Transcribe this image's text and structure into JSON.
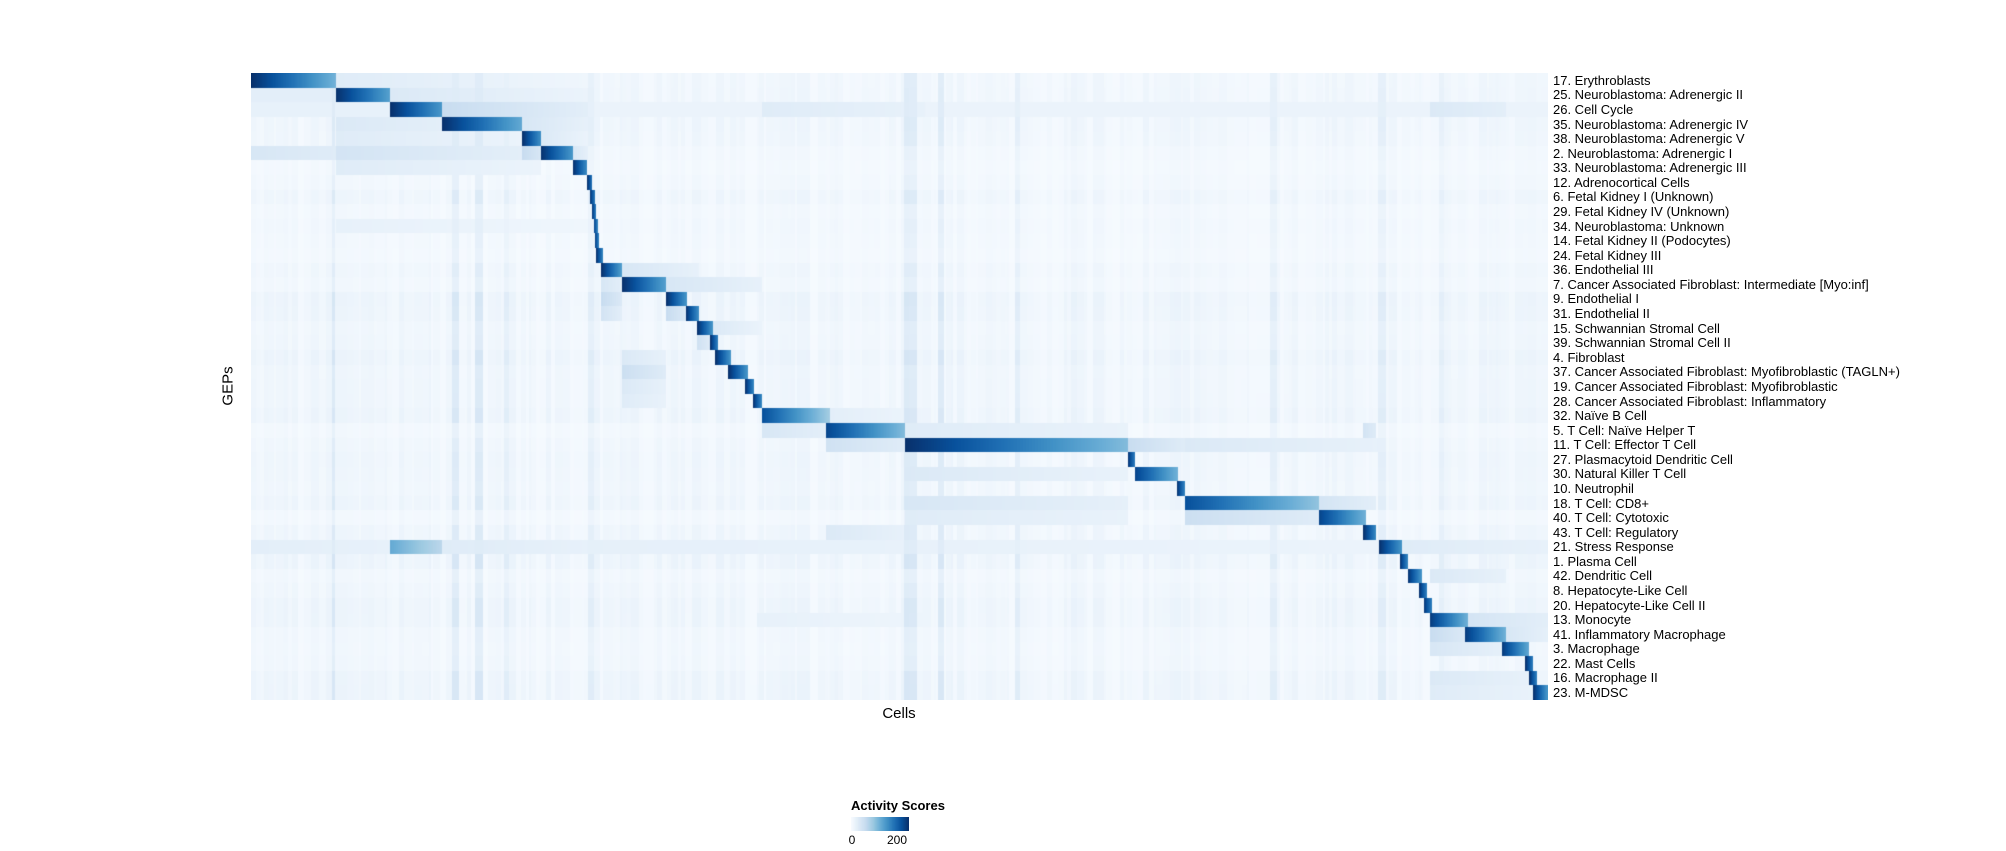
{
  "chart_data": {
    "type": "heatmap",
    "title": "",
    "xlabel": "Cells",
    "ylabel": "GEPs",
    "colorbar": {
      "title": "Activity Scores",
      "min_label": "0",
      "max_label": "200",
      "min_value": 0,
      "tick_max_value": 200,
      "scale_max_value": 250,
      "colormap": "Blues",
      "color_low": "#f7fbff",
      "color_high": "#08306b"
    },
    "noise": {
      "seed": 42,
      "base": 3,
      "range": 9,
      "spike_chance": 0.05,
      "spike_extra": 24,
      "run_min": 2,
      "run_max": 8
    },
    "rows": [
      {
        "label": "17. Erythroblasts",
        "blocks": [
          [
            0.0,
            0.065,
            250,
            120
          ],
          [
            0.065,
            0.26,
            30,
            10
          ]
        ]
      },
      {
        "label": "25. Neuroblastoma: Adrenergic II",
        "blocks": [
          [
            0.0,
            0.065,
            25,
            25
          ],
          [
            0.065,
            0.107,
            250,
            140
          ],
          [
            0.107,
            0.26,
            35,
            15
          ]
        ]
      },
      {
        "label": "26. Cell Cycle",
        "blocks": [
          [
            0.0,
            0.107,
            20,
            20
          ],
          [
            0.107,
            0.147,
            250,
            150
          ],
          [
            0.147,
            0.26,
            60,
            25
          ],
          [
            0.26,
            1.0,
            15,
            15
          ],
          [
            0.394,
            0.52,
            30,
            20
          ],
          [
            0.909,
            0.968,
            35,
            25
          ]
        ]
      },
      {
        "label": "35. Neuroblastoma: Adrenergic IV",
        "blocks": [
          [
            0.065,
            0.147,
            35,
            25
          ],
          [
            0.147,
            0.209,
            250,
            130
          ],
          [
            0.209,
            0.26,
            40,
            20
          ]
        ]
      },
      {
        "label": "38. Neuroblastoma: Adrenergic V",
        "blocks": [
          [
            0.065,
            0.209,
            30,
            15
          ],
          [
            0.209,
            0.223,
            250,
            160
          ],
          [
            0.223,
            0.26,
            35,
            15
          ]
        ]
      },
      {
        "label": "2. Neuroblastoma: Adrenergic I",
        "blocks": [
          [
            0.0,
            0.065,
            40,
            30
          ],
          [
            0.065,
            0.209,
            45,
            25
          ],
          [
            0.209,
            0.223,
            60,
            40
          ],
          [
            0.223,
            0.248,
            250,
            150
          ],
          [
            0.248,
            0.26,
            40,
            20
          ]
        ]
      },
      {
        "label": "33. Neuroblastoma: Adrenergic III",
        "blocks": [
          [
            0.065,
            0.223,
            30,
            15
          ],
          [
            0.248,
            0.259,
            250,
            160
          ]
        ]
      },
      {
        "label": "12. Adrenocortical Cells",
        "blocks": [
          [
            0.259,
            0.263,
            250,
            180
          ]
        ]
      },
      {
        "label": "6. Fetal Kidney I (Unknown)",
        "blocks": [
          [
            0.261,
            0.265,
            250,
            180
          ]
        ]
      },
      {
        "label": "29. Fetal Kidney IV (Unknown)",
        "blocks": [
          [
            0.263,
            0.266,
            240,
            170
          ]
        ]
      },
      {
        "label": "34. Neuroblastoma: Unknown",
        "blocks": [
          [
            0.065,
            0.26,
            20,
            10
          ],
          [
            0.264,
            0.267,
            240,
            170
          ]
        ]
      },
      {
        "label": "14. Fetal Kidney II (Podocytes)",
        "blocks": [
          [
            0.265,
            0.268,
            240,
            170
          ]
        ]
      },
      {
        "label": "24. Fetal Kidney III",
        "blocks": [
          [
            0.266,
            0.271,
            250,
            170
          ]
        ]
      },
      {
        "label": "36. Endothelial III",
        "blocks": [
          [
            0.27,
            0.286,
            250,
            140
          ],
          [
            0.286,
            0.345,
            40,
            20
          ]
        ]
      },
      {
        "label": "7. Cancer Associated Fibroblast: Intermediate [Myo:inf]",
        "blocks": [
          [
            0.27,
            0.286,
            40,
            25
          ],
          [
            0.286,
            0.32,
            250,
            140
          ],
          [
            0.32,
            0.394,
            40,
            20
          ]
        ]
      },
      {
        "label": "9. Endothelial I",
        "blocks": [
          [
            0.27,
            0.286,
            60,
            35
          ],
          [
            0.32,
            0.336,
            250,
            150
          ]
        ]
      },
      {
        "label": "31. Endothelial II",
        "blocks": [
          [
            0.27,
            0.286,
            45,
            25
          ],
          [
            0.32,
            0.335,
            60,
            35
          ],
          [
            0.335,
            0.345,
            250,
            160
          ]
        ]
      },
      {
        "label": "15. Schwannian Stromal Cell",
        "blocks": [
          [
            0.344,
            0.356,
            250,
            150
          ],
          [
            0.356,
            0.394,
            35,
            15
          ]
        ]
      },
      {
        "label": "39. Schwannian Stromal Cell II",
        "blocks": [
          [
            0.344,
            0.354,
            50,
            30
          ],
          [
            0.354,
            0.36,
            250,
            170
          ]
        ]
      },
      {
        "label": "4. Fibroblast",
        "blocks": [
          [
            0.286,
            0.32,
            35,
            20
          ],
          [
            0.358,
            0.37,
            250,
            150
          ]
        ]
      },
      {
        "label": "37. Cancer Associated Fibroblast: Myofibroblastic (TAGLN+)",
        "blocks": [
          [
            0.286,
            0.32,
            55,
            30
          ],
          [
            0.368,
            0.383,
            250,
            150
          ]
        ]
      },
      {
        "label": "19. Cancer Associated Fibroblast: Myofibroblastic",
        "blocks": [
          [
            0.286,
            0.32,
            35,
            20
          ],
          [
            0.381,
            0.388,
            250,
            160
          ]
        ]
      },
      {
        "label": "28. Cancer Associated Fibroblast: Inflammatory",
        "blocks": [
          [
            0.286,
            0.32,
            30,
            18
          ],
          [
            0.387,
            0.394,
            250,
            160
          ]
        ]
      },
      {
        "label": "32. Naïve B Cell",
        "blocks": [
          [
            0.394,
            0.446,
            220,
            90
          ],
          [
            0.446,
            0.52,
            25,
            12
          ]
        ]
      },
      {
        "label": "5. T Cell: Naïve Helper T",
        "blocks": [
          [
            0.394,
            0.443,
            40,
            25
          ],
          [
            0.443,
            0.504,
            230,
            110
          ],
          [
            0.504,
            0.676,
            30,
            18
          ],
          [
            0.858,
            0.868,
            45,
            30
          ]
        ]
      },
      {
        "label": "11. T Cell: Effector T Cell",
        "blocks": [
          [
            0.443,
            0.504,
            50,
            30
          ],
          [
            0.504,
            0.676,
            250,
            110
          ],
          [
            0.676,
            0.72,
            60,
            30
          ],
          [
            0.72,
            0.87,
            35,
            20
          ]
        ]
      },
      {
        "label": "27. Plasmacytoid Dendritic Cell",
        "blocks": [
          [
            0.676,
            0.682,
            250,
            170
          ]
        ]
      },
      {
        "label": "30. Natural Killer T Cell",
        "blocks": [
          [
            0.504,
            0.676,
            35,
            18
          ],
          [
            0.682,
            0.715,
            230,
            120
          ]
        ]
      },
      {
        "label": "10. Neutrophil",
        "blocks": [
          [
            0.714,
            0.72,
            250,
            170
          ]
        ]
      },
      {
        "label": "18. T Cell: CD8+",
        "blocks": [
          [
            0.504,
            0.676,
            40,
            22
          ],
          [
            0.72,
            0.824,
            220,
            100
          ],
          [
            0.824,
            0.868,
            45,
            25
          ]
        ]
      },
      {
        "label": "40. T Cell: Cytotoxic",
        "blocks": [
          [
            0.504,
            0.676,
            30,
            18
          ],
          [
            0.72,
            0.824,
            55,
            30
          ],
          [
            0.824,
            0.86,
            230,
            120
          ]
        ]
      },
      {
        "label": "43. T Cell: Regulatory",
        "blocks": [
          [
            0.443,
            0.504,
            35,
            20
          ],
          [
            0.858,
            0.868,
            250,
            160
          ]
        ]
      },
      {
        "label": "21. Stress Response",
        "blocks": [
          [
            0.0,
            0.107,
            25,
            20
          ],
          [
            0.107,
            0.147,
            130,
            70
          ],
          [
            0.147,
            0.26,
            30,
            20
          ],
          [
            0.26,
            0.87,
            22,
            15
          ],
          [
            0.87,
            0.888,
            250,
            150
          ],
          [
            0.888,
            1.0,
            30,
            20
          ]
        ]
      },
      {
        "label": "1. Plasma Cell",
        "blocks": [
          [
            0.886,
            0.892,
            250,
            170
          ]
        ]
      },
      {
        "label": "42. Dendritic Cell",
        "blocks": [
          [
            0.892,
            0.903,
            250,
            150
          ],
          [
            0.909,
            0.968,
            35,
            20
          ]
        ]
      },
      {
        "label": "8. Hepatocyte-Like Cell",
        "blocks": [
          [
            0.901,
            0.907,
            250,
            170
          ]
        ]
      },
      {
        "label": "20. Hepatocyte-Like Cell II",
        "blocks": [
          [
            0.905,
            0.911,
            240,
            170
          ]
        ]
      },
      {
        "label": "13. Monocyte",
        "blocks": [
          [
            0.39,
            0.52,
            20,
            12
          ],
          [
            0.909,
            0.939,
            240,
            120
          ],
          [
            0.939,
            1.0,
            45,
            25
          ]
        ]
      },
      {
        "label": "41. Inflammatory Macrophage",
        "blocks": [
          [
            0.909,
            0.936,
            60,
            35
          ],
          [
            0.936,
            0.968,
            240,
            120
          ],
          [
            0.968,
            1.0,
            40,
            22
          ]
        ]
      },
      {
        "label": "3. Macrophage",
        "blocks": [
          [
            0.909,
            0.965,
            40,
            22
          ],
          [
            0.965,
            0.986,
            240,
            130
          ]
        ]
      },
      {
        "label": "22. Mast Cells",
        "blocks": [
          [
            0.983,
            0.989,
            250,
            170
          ]
        ]
      },
      {
        "label": "16. Macrophage II",
        "blocks": [
          [
            0.909,
            0.986,
            35,
            20
          ],
          [
            0.986,
            0.992,
            250,
            170
          ]
        ]
      },
      {
        "label": "23. M-MDSC",
        "blocks": [
          [
            0.909,
            0.989,
            30,
            18
          ],
          [
            0.989,
            1.0,
            250,
            150
          ]
        ]
      }
    ]
  }
}
